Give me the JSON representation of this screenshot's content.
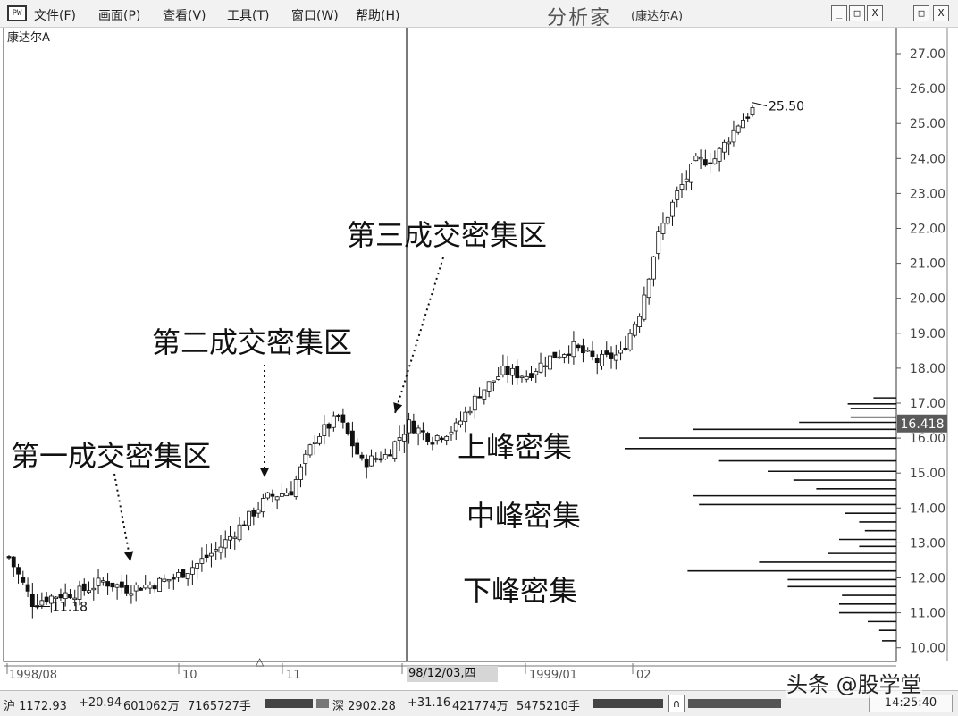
{
  "window": {
    "sys_icon": "PW",
    "menus": [
      "文件(F)",
      "画面(P)",
      "查看(V)",
      "工具(T)",
      "窗口(W)",
      "帮助(H)"
    ],
    "app_title": "分析家",
    "stock_tag": "(康达尔A)",
    "buttons": [
      "_",
      "□",
      "X",
      "□",
      "X"
    ]
  },
  "stock_name": "康达尔A",
  "annotations": {
    "zone1": "第一成交密集区",
    "zone2": "第二成交密集区",
    "zone3": "第三成交密集区",
    "upper": "上峰密集",
    "middle": "中峰密集",
    "lower": "下峰密集",
    "low_label": "11.18",
    "high_label": "25.50"
  },
  "current_price_label": "16.418",
  "x_labels": [
    "1998/08",
    "10",
    "11",
    "1999/01",
    "02"
  ],
  "date_box": "98/12/03,四",
  "status": {
    "sh": "沪 1172.93",
    "sh_chg": "+20.94",
    "sh_amt": "601062万",
    "sh_vol": "7165727手",
    "sz": "深 2902.28",
    "sz_chg": "+31.16",
    "sz_amt": "421774万",
    "sz_vol": "5475210手",
    "time": "14:25:40"
  },
  "watermark": "头条 @股学堂",
  "colors": {
    "background": "#ffffff",
    "line": "#111111",
    "price_tag": "#555555"
  },
  "chart_data": {
    "type": "candlestick",
    "title": "康达尔A",
    "y_ticks": [
      "27.00",
      "26.00",
      "25.00",
      "24.00",
      "23.00",
      "22.00",
      "21.00",
      "20.00",
      "19.00",
      "18.00",
      "17.00",
      "16.00",
      "15.00",
      "14.00",
      "13.00",
      "12.00",
      "11.00",
      "10.00"
    ],
    "ylim": [
      9.6,
      27.6
    ],
    "x_labels": [
      "1998/08",
      "10",
      "11",
      "1999/01",
      "02"
    ],
    "approx_close_path": [
      [
        0,
        12.6
      ],
      [
        5,
        11.3
      ],
      [
        10,
        11.5
      ],
      [
        15,
        11.6
      ],
      [
        20,
        11.9
      ],
      [
        25,
        11.7
      ],
      [
        30,
        11.8
      ],
      [
        35,
        12.0
      ],
      [
        40,
        12.4
      ],
      [
        45,
        12.9
      ],
      [
        50,
        13.6
      ],
      [
        55,
        14.3
      ],
      [
        60,
        14.5
      ],
      [
        65,
        16.0
      ],
      [
        70,
        16.6
      ],
      [
        75,
        15.3
      ],
      [
        80,
        15.5
      ],
      [
        85,
        16.4
      ],
      [
        90,
        16.0
      ],
      [
        95,
        16.3
      ],
      [
        100,
        17.3
      ],
      [
        105,
        17.9
      ],
      [
        110,
        17.8
      ],
      [
        115,
        18.3
      ],
      [
        120,
        18.6
      ],
      [
        125,
        18.2
      ],
      [
        130,
        18.4
      ],
      [
        134,
        19.6
      ],
      [
        138,
        21.8
      ],
      [
        142,
        23.0
      ],
      [
        146,
        23.9
      ],
      [
        150,
        24.0
      ],
      [
        155,
        25.0
      ],
      [
        158,
        25.4
      ]
    ],
    "volume_profile_prices": [
      17.15,
      16.98,
      16.85,
      16.6,
      16.45,
      16.25,
      16.0,
      15.7,
      15.35,
      15.05,
      14.8,
      14.55,
      14.35,
      14.1,
      13.85,
      13.6,
      13.35,
      13.1,
      12.9,
      12.7,
      12.45,
      12.2,
      11.95,
      11.75,
      11.5,
      11.25,
      11.0,
      10.75,
      10.5,
      10.2
    ],
    "volume_profile_values": [
      0.08,
      0.17,
      0.16,
      0.16,
      0.34,
      0.71,
      0.9,
      0.95,
      0.62,
      0.45,
      0.36,
      0.28,
      0.71,
      0.69,
      0.18,
      0.13,
      0.11,
      0.2,
      0.13,
      0.24,
      0.48,
      0.73,
      0.38,
      0.38,
      0.19,
      0.2,
      0.2,
      0.1,
      0.06,
      0.05
    ]
  }
}
